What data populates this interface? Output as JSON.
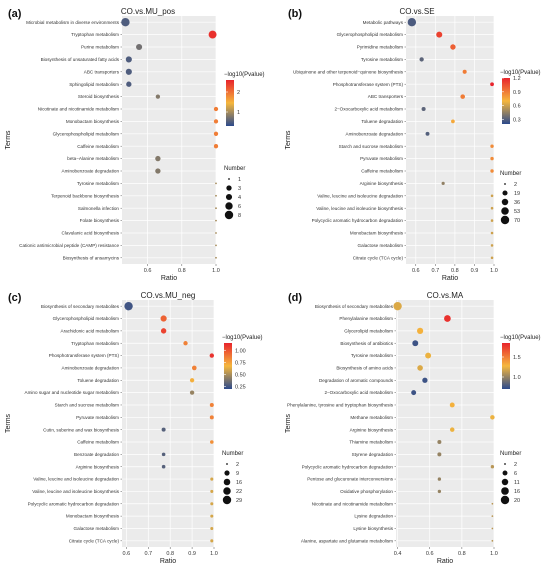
{
  "colors": {
    "panel_bg": "#ebebeb",
    "grid": "#ffffff",
    "scale_low": "#2c4a8c",
    "scale_mid": "#f5b73d",
    "scale_high": "#e8242c"
  },
  "chart_data": [
    {
      "type": "scatter",
      "panel_tag": "(a)",
      "title": "CO.vs.MU_pos",
      "xlabel": "Ratio",
      "ylabel": "Terms",
      "xlim": [
        0.45,
        1.0
      ],
      "xticks": [
        0.6,
        0.8,
        1.0
      ],
      "xtick_labels": [
        "0.6",
        "0.8",
        "1.0"
      ],
      "grid": true,
      "color_legend": {
        "title": "−log10(Pvalue)",
        "min": 0.3,
        "max": 2.6,
        "ticks": [
          1,
          2
        ],
        "tick_labels": [
          "1",
          "2"
        ]
      },
      "size_legend": {
        "title": "Number",
        "values": [
          1,
          3,
          4,
          6,
          8
        ],
        "labels": [
          "1",
          "3",
          "4",
          "6",
          "8"
        ],
        "min": 1,
        "max": 8
      },
      "terms": [
        "Microbial metabolism in diverse environments",
        "Tryptophan metabolism",
        "Purine metabolism",
        "Biosynthesis of unsaturated fatty acids",
        "ABC transporters",
        "Sphingolipid metabolism",
        "Steroid biosynthesis",
        "Nicotinate and nicotinamide metabolism",
        "Monobactam biosynthesis",
        "Glycerophospholipid metabolism",
        "Caffeine metabolism",
        "beta−Alanine metabolism",
        "Aminobenzoate degradation",
        "Tyrosine metabolism",
        "Terpenoid backbone biosynthesis",
        "Salmonella infection",
        "Folate biosynthesis",
        "Clavulanic acid biosynthesis",
        "Cationic antimicrobial peptide (CAMP) resistance",
        "Biosynthesis of ansamycins"
      ],
      "x": [
        0.47,
        0.98,
        0.55,
        0.49,
        0.49,
        0.49,
        0.66,
        1.0,
        1.0,
        1.0,
        1.0,
        0.66,
        0.66,
        1.0,
        1.0,
        1.0,
        1.0,
        1.0,
        1.0,
        1.0
      ],
      "size": [
        8,
        7,
        4,
        4,
        4,
        3,
        2,
        2,
        2,
        2,
        2,
        3,
        3,
        1,
        1,
        1,
        1,
        1,
        1,
        1
      ],
      "color": [
        0.5,
        2.5,
        0.7,
        0.5,
        0.5,
        0.5,
        0.8,
        1.9,
        1.9,
        1.9,
        1.9,
        0.8,
        0.8,
        1.0,
        1.0,
        1.0,
        1.0,
        1.0,
        1.0,
        1.0
      ]
    },
    {
      "type": "scatter",
      "panel_tag": "(b)",
      "title": "CO.vs.SE",
      "xlabel": "Ratio",
      "ylabel": "Terms",
      "xlim": [
        0.55,
        1.0
      ],
      "xticks": [
        0.6,
        0.7,
        0.8,
        0.9,
        1.0
      ],
      "xtick_labels": [
        "0.6",
        "0.7",
        "0.8",
        "0.9",
        "1.0"
      ],
      "grid": true,
      "color_legend": {
        "title": "−log10(Pvalue)",
        "min": 0.2,
        "max": 1.2,
        "ticks": [
          0.3,
          0.6,
          0.9,
          1.2
        ],
        "tick_labels": [
          "0.3",
          "0.6",
          "0.9",
          "1.2"
        ]
      },
      "size_legend": {
        "title": "Number",
        "values": [
          2,
          19,
          36,
          53,
          70
        ],
        "labels": [
          "2",
          "19",
          "36",
          "53",
          "70"
        ],
        "min": 2,
        "max": 70
      },
      "terms": [
        "Metabolic pathways",
        "Glycerophospholipid metabolism",
        "Pyrimidine metabolism",
        "Tyrosine metabolism",
        "Ubiquinone and other terpenoid−quinone biosynthesis",
        "Phosphotransferase system (PTS)",
        "ABC transporters",
        "2−Oxocarboxylic acid metabolism",
        "Toluene degradation",
        "Aminobenzoate degradation",
        "Starch and sucrose metabolism",
        "Pyruvate metabolism",
        "Caffeine metabolism",
        "Arginine biosynthesis",
        "Valine, leucine and isoleucine degradation",
        "Valine, leucine and isoleucine biosynthesis",
        "Polycyclic aromatic hydrocarbon degradation",
        "Monobactam biosynthesis",
        "Galactose metabolism",
        "Citrate cycle (TCA cycle)"
      ],
      "x": [
        0.58,
        0.72,
        0.79,
        0.63,
        0.85,
        0.99,
        0.84,
        0.64,
        0.79,
        0.66,
        0.99,
        0.99,
        0.99,
        0.74,
        0.99,
        0.99,
        0.99,
        0.99,
        0.99,
        0.99
      ],
      "size": [
        70,
        30,
        22,
        12,
        10,
        8,
        14,
        10,
        8,
        9,
        6,
        6,
        6,
        5,
        3,
        3,
        3,
        3,
        3,
        3
      ],
      "color": [
        0.28,
        1.1,
        1.0,
        0.32,
        0.9,
        1.2,
        0.9,
        0.32,
        0.75,
        0.3,
        0.85,
        0.85,
        0.85,
        0.45,
        0.6,
        0.6,
        0.6,
        0.6,
        0.6,
        0.6
      ]
    },
    {
      "type": "scatter",
      "panel_tag": "(c)",
      "title": "CO.vs.MU_neg",
      "xlabel": "Ratio",
      "ylabel": "Terms",
      "xlim": [
        0.58,
        1.0
      ],
      "xticks": [
        0.6,
        0.7,
        0.8,
        0.9,
        1.0
      ],
      "xtick_labels": [
        "0.6",
        "0.7",
        "0.8",
        "0.9",
        "1.0"
      ],
      "grid": true,
      "color_legend": {
        "title": "−log10(Pvalue)",
        "min": 0.2,
        "max": 1.15,
        "ticks": [
          0.25,
          0.5,
          0.75,
          1.0
        ],
        "tick_labels": [
          "0.25",
          "0.50",
          "0.75",
          "1.00"
        ]
      },
      "size_legend": {
        "title": "Number",
        "values": [
          2,
          9,
          16,
          22,
          29
        ],
        "labels": [
          "2",
          "9",
          "16",
          "22",
          "29"
        ],
        "min": 2,
        "max": 29
      },
      "terms": [
        "Biosynthesis of secondary metabolites",
        "Glycerophospholipid metabolism",
        "Arachidonic acid metabolism",
        "Tryptophan metabolism",
        "Phosphotransferase system (PTS)",
        "Aminobenzoate degradation",
        "Toluene degradation",
        "Amino sugar and nucleotide sugar metabolism",
        "Starch and sucrose metabolism",
        "Pyruvate metabolism",
        "Cutin, suberine and wax biosynthesis",
        "Caffeine metabolism",
        "Benzoate degradation",
        "Arginine biosynthesis",
        "Valine, leucine and isoleucine degradation",
        "Valine, leucine and isoleucine biosynthesis",
        "Polycyclic aromatic hydrocarbon degradation",
        "Monobactam biosynthesis",
        "Galactose metabolism",
        "Citrate cycle (TCA cycle)"
      ],
      "x": [
        0.61,
        0.77,
        0.77,
        0.87,
        0.99,
        0.91,
        0.9,
        0.9,
        0.99,
        0.99,
        0.77,
        0.99,
        0.77,
        0.77,
        0.99,
        0.99,
        0.99,
        0.99,
        0.99,
        0.99
      ],
      "size": [
        29,
        14,
        10,
        6,
        6,
        7,
        6,
        6,
        5,
        5,
        5,
        4,
        4,
        4,
        3,
        3,
        3,
        3,
        3,
        3
      ],
      "color": [
        0.25,
        0.95,
        1.05,
        0.85,
        1.1,
        0.85,
        0.7,
        0.45,
        0.85,
        0.85,
        0.3,
        0.8,
        0.3,
        0.3,
        0.6,
        0.6,
        0.6,
        0.6,
        0.6,
        0.6
      ]
    },
    {
      "type": "scatter",
      "panel_tag": "(d)",
      "title": "CO.vs.MA",
      "xlabel": "Ratio",
      "ylabel": "Terms",
      "xlim": [
        0.39,
        1.0
      ],
      "xticks": [
        0.4,
        0.6,
        0.8,
        1.0
      ],
      "xtick_labels": [
        "0.4",
        "0.6",
        "0.8",
        "1.0"
      ],
      "grid": true,
      "color_legend": {
        "title": "−log10(Pvalue)",
        "min": 0.7,
        "max": 1.85,
        "ticks": [
          1.0,
          1.5
        ],
        "tick_labels": [
          "1.0",
          "1.5"
        ]
      },
      "size_legend": {
        "title": "Number",
        "values": [
          2,
          6,
          11,
          16,
          20
        ],
        "labels": [
          "2",
          "6",
          "11",
          "16",
          "20"
        ],
        "min": 2,
        "max": 20
      },
      "terms": [
        "Biosynthesis of secondary metabolites",
        "Phenylalanine metabolism",
        "Glycerolipid metabolism",
        "Biosynthesis of antibiotics",
        "Tyrosine metabolism",
        "Biosynthesis of amino acids",
        "Degradation of aromatic compounds",
        "2−Oxocarboxylic acid metabolism",
        "Phenylalanine, tyrosine and tryptophan biosynthesis",
        "Methane metabolism",
        "Arginine biosynthesis",
        "Thiamine metabolism",
        "Styrene degradation",
        "Polycyclic aromatic hydrocarbon degradation",
        "Pentose and glucuronate interconversions",
        "Oxidative phosphorylation",
        "Nicotinate and nicotinamide metabolism",
        "Lysine degradation",
        "Lysine biosynthesis",
        "Alanine, aspartate and glutamate metabolism"
      ],
      "x": [
        0.4,
        0.71,
        0.54,
        0.51,
        0.59,
        0.54,
        0.57,
        0.5,
        0.74,
        0.99,
        0.74,
        0.66,
        0.66,
        0.99,
        0.66,
        0.66,
        0.99,
        0.99,
        0.99,
        0.99
      ],
      "size": [
        20,
        12,
        10,
        9,
        9,
        8,
        7,
        6,
        6,
        5,
        5,
        4,
        4,
        3,
        3,
        3,
        2,
        2,
        2,
        2
      ],
      "color": [
        1.2,
        1.8,
        1.3,
        0.75,
        1.25,
        1.2,
        0.75,
        0.75,
        1.3,
        1.25,
        1.25,
        1.0,
        1.0,
        1.1,
        1.0,
        1.0,
        1.1,
        1.1,
        1.1,
        1.1
      ]
    }
  ]
}
